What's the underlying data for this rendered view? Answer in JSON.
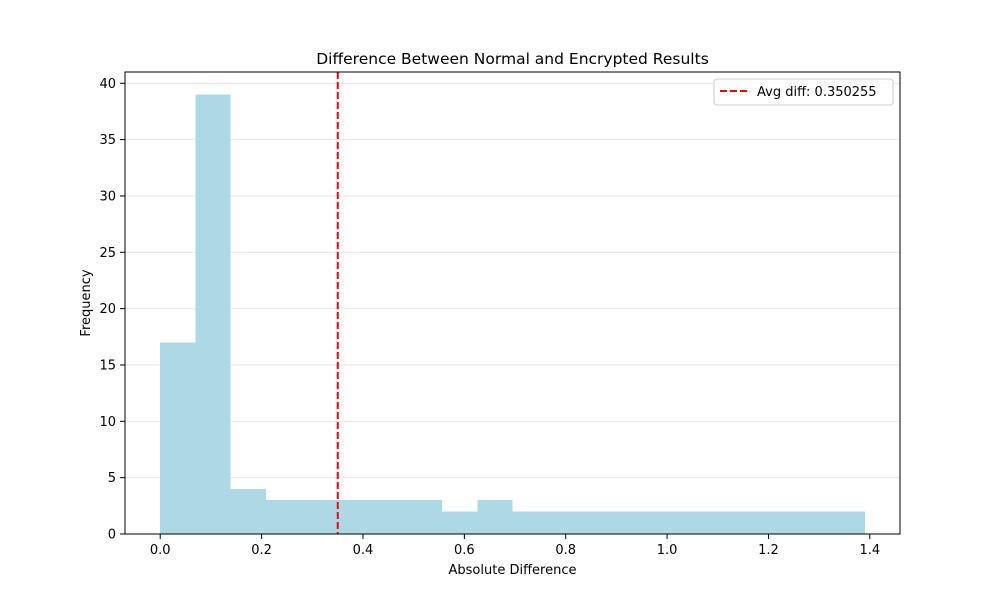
{
  "chart_data": {
    "type": "bar",
    "title": "Difference Between Normal and Encrypted Results",
    "xlabel": "Absolute Difference",
    "ylabel": "Frequency",
    "xlim": [
      -0.0695,
      1.4595
    ],
    "ylim": [
      0,
      41
    ],
    "x_ticks": [
      0.0,
      0.2,
      0.4,
      0.6,
      0.8,
      1.0,
      1.2,
      1.4
    ],
    "x_tick_labels": [
      "0.0",
      "0.2",
      "0.4",
      "0.6",
      "0.8",
      "1.0",
      "1.2",
      "1.4"
    ],
    "y_ticks": [
      0,
      5,
      10,
      15,
      20,
      25,
      30,
      35,
      40
    ],
    "y_tick_labels": [
      "0",
      "5",
      "10",
      "15",
      "20",
      "25",
      "30",
      "35",
      "40"
    ],
    "grid": "horizontal",
    "bin_edges": [
      0.0,
      0.0695,
      0.139,
      0.2085,
      0.278,
      0.3475,
      0.417,
      0.4865,
      0.556,
      0.6255,
      0.695,
      0.7645,
      0.834,
      0.9035,
      0.973,
      1.0425,
      1.112,
      1.1815,
      1.251,
      1.3205,
      1.39
    ],
    "values": [
      17,
      39,
      4,
      3,
      3,
      3,
      3,
      3,
      2,
      3,
      2,
      2,
      2,
      2,
      2,
      2,
      2,
      2,
      2,
      2
    ],
    "bar_color": "#add8e6",
    "reference_line": {
      "x": 0.350255,
      "label": "Avg diff: 0.350255",
      "color": "#ff0000",
      "style": "dashed"
    },
    "legend_position": "top-right"
  }
}
